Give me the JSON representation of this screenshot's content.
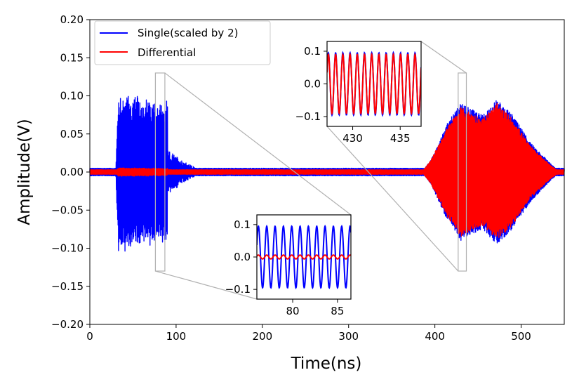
{
  "chart_data": {
    "type": "line",
    "xlabel": "Time(ns)",
    "ylabel": "Amplitude(V)",
    "xlim": [
      0,
      550
    ],
    "ylim": [
      -0.2,
      0.2
    ],
    "xticks": [
      0,
      100,
      200,
      300,
      400,
      500
    ],
    "yticks": [
      -0.2,
      -0.15,
      -0.1,
      -0.05,
      0.0,
      0.05,
      0.1,
      0.15,
      0.2
    ],
    "xtick_labels": [
      "0",
      "100",
      "200",
      "300",
      "400",
      "500"
    ],
    "ytick_labels": [
      "−0.20",
      "−0.15",
      "−0.10",
      "−0.05",
      "0.00",
      "0.05",
      "0.10",
      "0.15",
      "0.20"
    ],
    "legend_position": "top-left",
    "series": [
      {
        "name": "Single(scaled by 2)",
        "color": "#0000ff",
        "noise_amplitude": 0.005,
        "bursts": [
          {
            "start": 30,
            "end": 90,
            "peak_amplitude": 0.11,
            "tail_end": 130,
            "tail_amplitude": 0.03
          },
          {
            "start": 385,
            "end": 545,
            "envelope": [
              [
                385,
                0.0
              ],
              [
                395,
                0.015
              ],
              [
                415,
                0.065
              ],
              [
                430,
                0.09
              ],
              [
                455,
                0.075
              ],
              [
                472,
                0.095
              ],
              [
                490,
                0.075
              ],
              [
                510,
                0.04
              ],
              [
                535,
                0.01
              ],
              [
                545,
                0.0
              ]
            ]
          }
        ]
      },
      {
        "name": "Differential",
        "color": "#ff0000",
        "noise_amplitude": 0.003,
        "bursts": [
          {
            "start": 30,
            "end": 90,
            "peak_amplitude": 0.006
          },
          {
            "start": 385,
            "end": 545,
            "envelope": [
              [
                385,
                0.0
              ],
              [
                395,
                0.015
              ],
              [
                415,
                0.06
              ],
              [
                430,
                0.085
              ],
              [
                455,
                0.07
              ],
              [
                472,
                0.09
              ],
              [
                490,
                0.07
              ],
              [
                510,
                0.035
              ],
              [
                535,
                0.008
              ],
              [
                545,
                0.0
              ]
            ]
          }
        ]
      }
    ],
    "insets": [
      {
        "name": "inset-early",
        "source_xrange": [
          76,
          87
        ],
        "source_yrange": [
          -0.13,
          0.13
        ],
        "xlim": [
          76,
          86.5
        ],
        "ylim": [
          -0.13,
          0.13
        ],
        "xticks": [
          80,
          85
        ],
        "xtick_labels": [
          "80",
          "85"
        ],
        "yticks": [
          -0.1,
          0.0,
          0.1
        ],
        "ytick_labels": [
          "−0.1",
          "0.0",
          "0.1"
        ],
        "series": [
          {
            "name": "Single(scaled by 2)",
            "color": "#0000ff",
            "amplitude": 0.095,
            "period_ns": 0.93
          },
          {
            "name": "Differential",
            "color": "#ff0000",
            "amplitude": 0.006,
            "period_ns": 0.93
          }
        ]
      },
      {
        "name": "inset-late",
        "source_xrange": [
          427,
          436.5
        ],
        "source_yrange": [
          -0.13,
          0.13
        ],
        "xlim": [
          427.3,
          437.2
        ],
        "ylim": [
          -0.13,
          0.13
        ],
        "xticks": [
          430,
          435
        ],
        "xtick_labels": [
          "430",
          "435"
        ],
        "yticks": [
          -0.1,
          0.0,
          0.1
        ],
        "ytick_labels": [
          "−0.1",
          "0.0",
          "0.1"
        ],
        "series": [
          {
            "name": "Single(scaled by 2)",
            "color": "#0000ff",
            "amplitude": 0.095,
            "period_ns": 0.76
          },
          {
            "name": "Differential",
            "color": "#ff0000",
            "amplitude": 0.09,
            "period_ns": 0.76
          }
        ]
      }
    ]
  }
}
